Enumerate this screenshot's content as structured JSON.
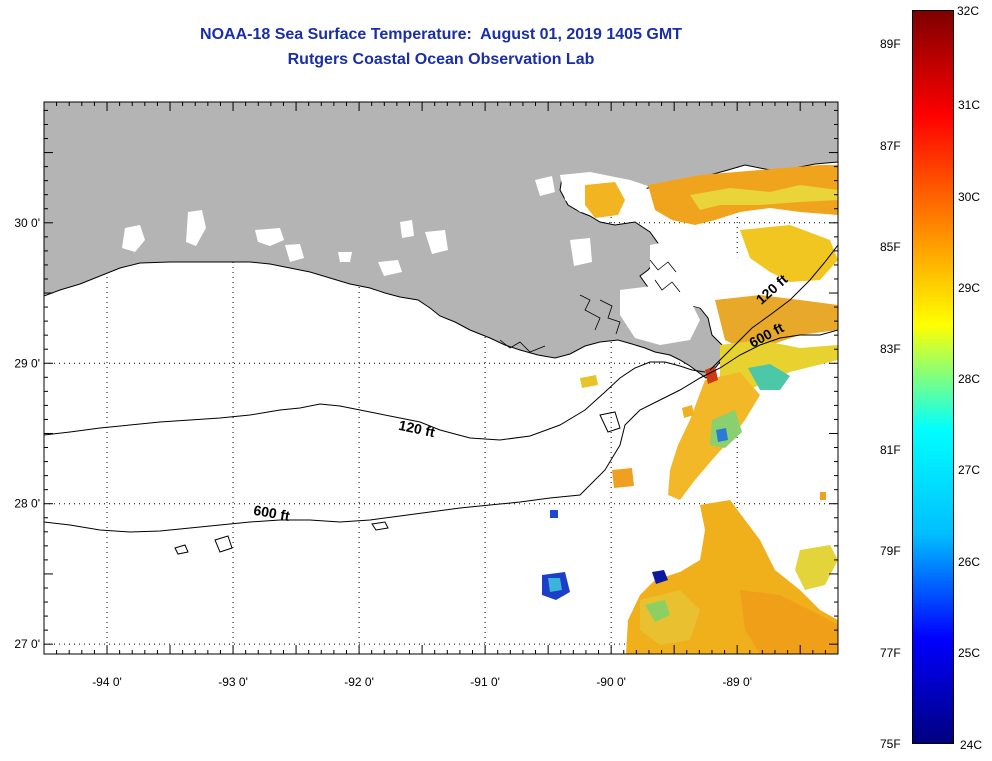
{
  "title": {
    "line1": "NOAA-18 Sea Surface Temperature:  August 01, 2019 1405 GMT",
    "line2": "Rutgers Coastal Ocean Observation Lab"
  },
  "map": {
    "lon_range": [
      -94.5,
      -88.2
    ],
    "lat_range": [
      26.93,
      30.86
    ],
    "lon_ticks": [
      {
        "value": -94,
        "label": "-94 0'"
      },
      {
        "value": -93,
        "label": "-93 0'"
      },
      {
        "value": -92,
        "label": "-92 0'"
      },
      {
        "value": -91,
        "label": "-91 0'"
      },
      {
        "value": -90,
        "label": "-90 0'"
      },
      {
        "value": -89,
        "label": "-89 0'"
      }
    ],
    "lat_ticks": [
      {
        "value": 30,
        "label": "30 0'"
      },
      {
        "value": 29,
        "label": "29 0'"
      },
      {
        "value": 28,
        "label": "28 0'"
      },
      {
        "value": 27,
        "label": "27 0'"
      }
    ],
    "land_color": "#b4b4b4",
    "contour_labels": [
      {
        "text": "120 ft",
        "lon": -91.55,
        "lat": 28.5
      },
      {
        "text": "600 ft",
        "lon": -92.7,
        "lat": 27.9
      },
      {
        "text": "120 ft",
        "lon": -88.7,
        "lat": 29.5
      },
      {
        "text": "600 ft",
        "lon": -88.75,
        "lat": 29.17
      }
    ]
  },
  "colorbar": {
    "celsius_labels": [
      "32C",
      "31C",
      "30C",
      "29C",
      "28C",
      "27C",
      "26C",
      "25C",
      "24C"
    ],
    "fahrenheit_labels": [
      "89F",
      "87F",
      "85F",
      "83F",
      "81F",
      "79F",
      "77F",
      "75F"
    ],
    "celsius_range": [
      24,
      32
    ],
    "colors": [
      "#00007f",
      "#0000ff",
      "#00bfff",
      "#00ffff",
      "#ffff00",
      "#ff7f00",
      "#ff0000",
      "#7f0000"
    ]
  }
}
